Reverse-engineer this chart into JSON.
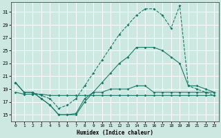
{
  "xlabel": "Humidex (Indice chaleur)",
  "bg_color": "#cce8e0",
  "grid_color": "#ffffff",
  "line_color": "#1a7a6a",
  "xlim": [
    -0.5,
    23.5
  ],
  "ylim": [
    14,
    32.5
  ],
  "xticks": [
    0,
    1,
    2,
    3,
    4,
    5,
    6,
    7,
    8,
    9,
    10,
    11,
    12,
    13,
    14,
    15,
    16,
    17,
    18,
    19,
    20,
    21,
    22,
    23
  ],
  "yticks": [
    15,
    17,
    19,
    21,
    23,
    25,
    27,
    29,
    31
  ],
  "line_flat_x": [
    0,
    1,
    2,
    3,
    4,
    5,
    6,
    7,
    8,
    9,
    10,
    11,
    12,
    13,
    14,
    15,
    16,
    17,
    18,
    19,
    20,
    21,
    22,
    23
  ],
  "line_flat_y": [
    18.5,
    18.2,
    18.2,
    18.2,
    18.0,
    18.0,
    18.0,
    18.0,
    18.0,
    18.0,
    18.0,
    18.0,
    18.0,
    18.0,
    18.0,
    18.0,
    18.0,
    18.0,
    18.0,
    18.0,
    18.0,
    18.0,
    18.0,
    18.0
  ],
  "line_low_x": [
    0,
    1,
    2,
    3,
    4,
    5,
    6,
    7,
    8,
    9,
    10,
    11,
    12,
    13,
    14,
    15,
    16,
    17,
    18,
    19,
    20,
    21,
    22,
    23
  ],
  "line_low_y": [
    20.0,
    18.5,
    18.5,
    17.5,
    16.5,
    15.0,
    15.0,
    15.0,
    17.0,
    18.5,
    18.5,
    19.0,
    19.0,
    19.0,
    19.5,
    19.5,
    18.5,
    18.5,
    18.5,
    18.5,
    18.5,
    18.5,
    18.5,
    18.5
  ],
  "line_mid_x": [
    0,
    1,
    2,
    3,
    4,
    5,
    6,
    7,
    8,
    9,
    10,
    11,
    12,
    13,
    14,
    15,
    16,
    17,
    18,
    19,
    20,
    21,
    22,
    23
  ],
  "line_mid_y": [
    20.0,
    18.5,
    18.5,
    17.5,
    16.5,
    15.0,
    15.0,
    15.2,
    17.5,
    18.5,
    20.0,
    21.5,
    23.0,
    24.0,
    25.5,
    25.5,
    25.5,
    25.0,
    24.0,
    23.0,
    19.5,
    19.5,
    19.0,
    18.5
  ],
  "line_top_x": [
    0,
    1,
    2,
    3,
    4,
    5,
    6,
    7,
    8,
    9,
    10,
    11,
    12,
    13,
    14,
    15,
    16,
    17,
    18,
    19,
    20,
    21,
    22,
    23
  ],
  "line_top_y": [
    20.0,
    18.5,
    18.5,
    18.0,
    17.5,
    16.0,
    16.5,
    17.5,
    19.5,
    21.5,
    23.5,
    25.5,
    27.5,
    29.0,
    30.5,
    31.5,
    31.5,
    30.5,
    28.5,
    32.0,
    19.5,
    19.0,
    18.5,
    18.0
  ]
}
